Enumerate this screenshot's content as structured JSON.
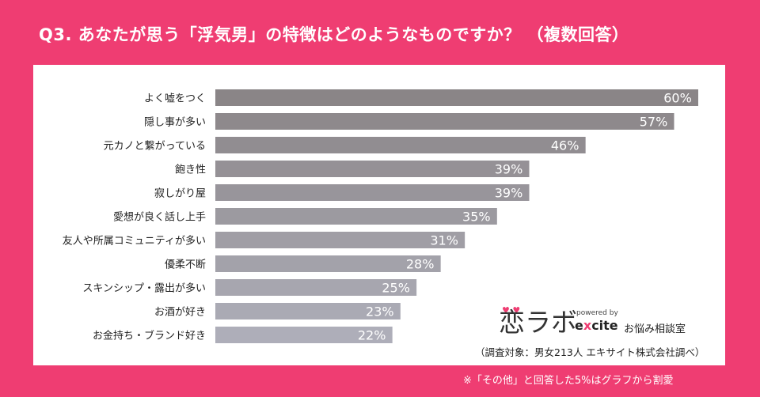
{
  "title": "Q3. あなたが思う「浮気男」の特徴はどのようなものですか？ （複数回答）",
  "chart_data": {
    "type": "bar",
    "orientation": "horizontal",
    "categories": [
      "よく嘘をつく",
      "隠し事が多い",
      "元カノと繋がっている",
      "飽き性",
      "寂しがり屋",
      "愛想が良く話し上手",
      "友人や所属コミュニティが多い",
      "優柔不断",
      "スキンシップ・露出が多い",
      "お酒が好き",
      "お金持ち・ブランド好き"
    ],
    "values": [
      60,
      57,
      46,
      39,
      39,
      35,
      31,
      28,
      25,
      23,
      22
    ],
    "value_labels": [
      "60%",
      "57%",
      "46%",
      "39%",
      "39%",
      "35%",
      "31%",
      "28%",
      "25%",
      "23%",
      "22%"
    ],
    "unit": "%",
    "xlim": [
      0,
      60
    ],
    "grid": false,
    "legend": "none",
    "bar_color_start": "#8a8587",
    "bar_color_end": "#aeaeb9"
  },
  "logo": {
    "main": "恋ラボ",
    "powered": "powered by",
    "brand_pre": "e",
    "brand_x": "x",
    "brand_post": "cite",
    "sub": "お悩み相談室"
  },
  "source": "（調査対象：男女213人 エキサイト株式会社調べ）",
  "note": "※「その他」と回答した5%はグラフから割愛"
}
